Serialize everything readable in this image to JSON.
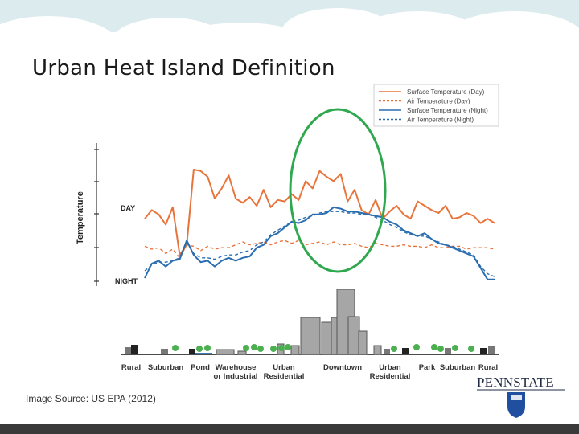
{
  "slide": {
    "title": "Urban Heat Island Definition",
    "source": "Image Source: US EPA (2012)"
  },
  "logo": {
    "text": "PENNSTATE",
    "emblem": "penn-state-shield"
  },
  "colors": {
    "orange": "#e8743b",
    "blue": "#2a6db0",
    "highlight": "#2fa84f",
    "building": "#a6a6a6",
    "tree": "#4caf50"
  },
  "chart_data": {
    "type": "line",
    "ylabel": "Temperature",
    "ytick_labels": [
      "DAY",
      "NIGHT"
    ],
    "grid": false,
    "legend_position": "top-right",
    "x": [
      0,
      2,
      4,
      6,
      8,
      10,
      12,
      14,
      16,
      18,
      20,
      22,
      24,
      26,
      28,
      30,
      32,
      34,
      36,
      38,
      40,
      42,
      44,
      46,
      48,
      50,
      52,
      54,
      56,
      58,
      60,
      62,
      64,
      66,
      68,
      70,
      72,
      74,
      76,
      78,
      80,
      82,
      84,
      86,
      88,
      90,
      92,
      94,
      96,
      98,
      100
    ],
    "series": [
      {
        "name": "Surface Temperature (Day)",
        "color": "#e8743b",
        "dash": false,
        "values": [
          46,
          52,
          49,
          42,
          54,
          21,
          28,
          80,
          79,
          75,
          60,
          67,
          76,
          60,
          57,
          61,
          55,
          66,
          54,
          59,
          58,
          63,
          59,
          72,
          67,
          79,
          75,
          72,
          77,
          58,
          66,
          52,
          49,
          59,
          46,
          51,
          55,
          49,
          46,
          58,
          55,
          52,
          50,
          55,
          46,
          47,
          50,
          48,
          43,
          46,
          43
        ]
      },
      {
        "name": "Air Temperature (Day)",
        "color": "#e8743b",
        "dash": true,
        "values": [
          27,
          25,
          26,
          22,
          25,
          19,
          28,
          27,
          24,
          27,
          25,
          26,
          26,
          28,
          30,
          28,
          29,
          30,
          28,
          30,
          31,
          29,
          31,
          28,
          29,
          30,
          28,
          30,
          28,
          28,
          29,
          27,
          26,
          29,
          28,
          27,
          27,
          28,
          27,
          27,
          26,
          28,
          26,
          26,
          27,
          27,
          25,
          26,
          26,
          26,
          25
        ]
      },
      {
        "name": "Surface Temperature (Night)",
        "color": "#2a6db0",
        "dash": false,
        "values": [
          5,
          15,
          17,
          13,
          17,
          18,
          31,
          21,
          16,
          17,
          13,
          17,
          19,
          17,
          19,
          20,
          26,
          28,
          34,
          36,
          40,
          44,
          43,
          45,
          49,
          49,
          50,
          54,
          53,
          51,
          51,
          50,
          49,
          48,
          47,
          44,
          42,
          38,
          36,
          34,
          36,
          32,
          29,
          28,
          26,
          24,
          22,
          20,
          12,
          4,
          4
        ]
      },
      {
        "name": "Air Temperature (Night)",
        "color": "#2a6db0",
        "dash": true,
        "values": [
          10,
          14,
          16,
          16,
          17,
          19,
          30,
          22,
          19,
          19,
          18,
          20,
          21,
          21,
          23,
          24,
          28,
          30,
          35,
          38,
          41,
          44,
          45,
          47,
          48,
          50,
          51,
          51,
          51,
          50,
          50,
          49,
          49,
          47,
          45,
          42,
          40,
          37,
          35,
          34,
          34,
          32,
          30,
          28,
          27,
          25,
          23,
          21,
          13,
          8,
          6
        ]
      }
    ],
    "zones": [
      "Rural",
      "Suburban",
      "Pond",
      "Warehouse or Industrial",
      "Urban Residential",
      "Downtown",
      "Urban Residential",
      "Park",
      "Suburban",
      "Rural"
    ],
    "highlight": "Downtown"
  }
}
